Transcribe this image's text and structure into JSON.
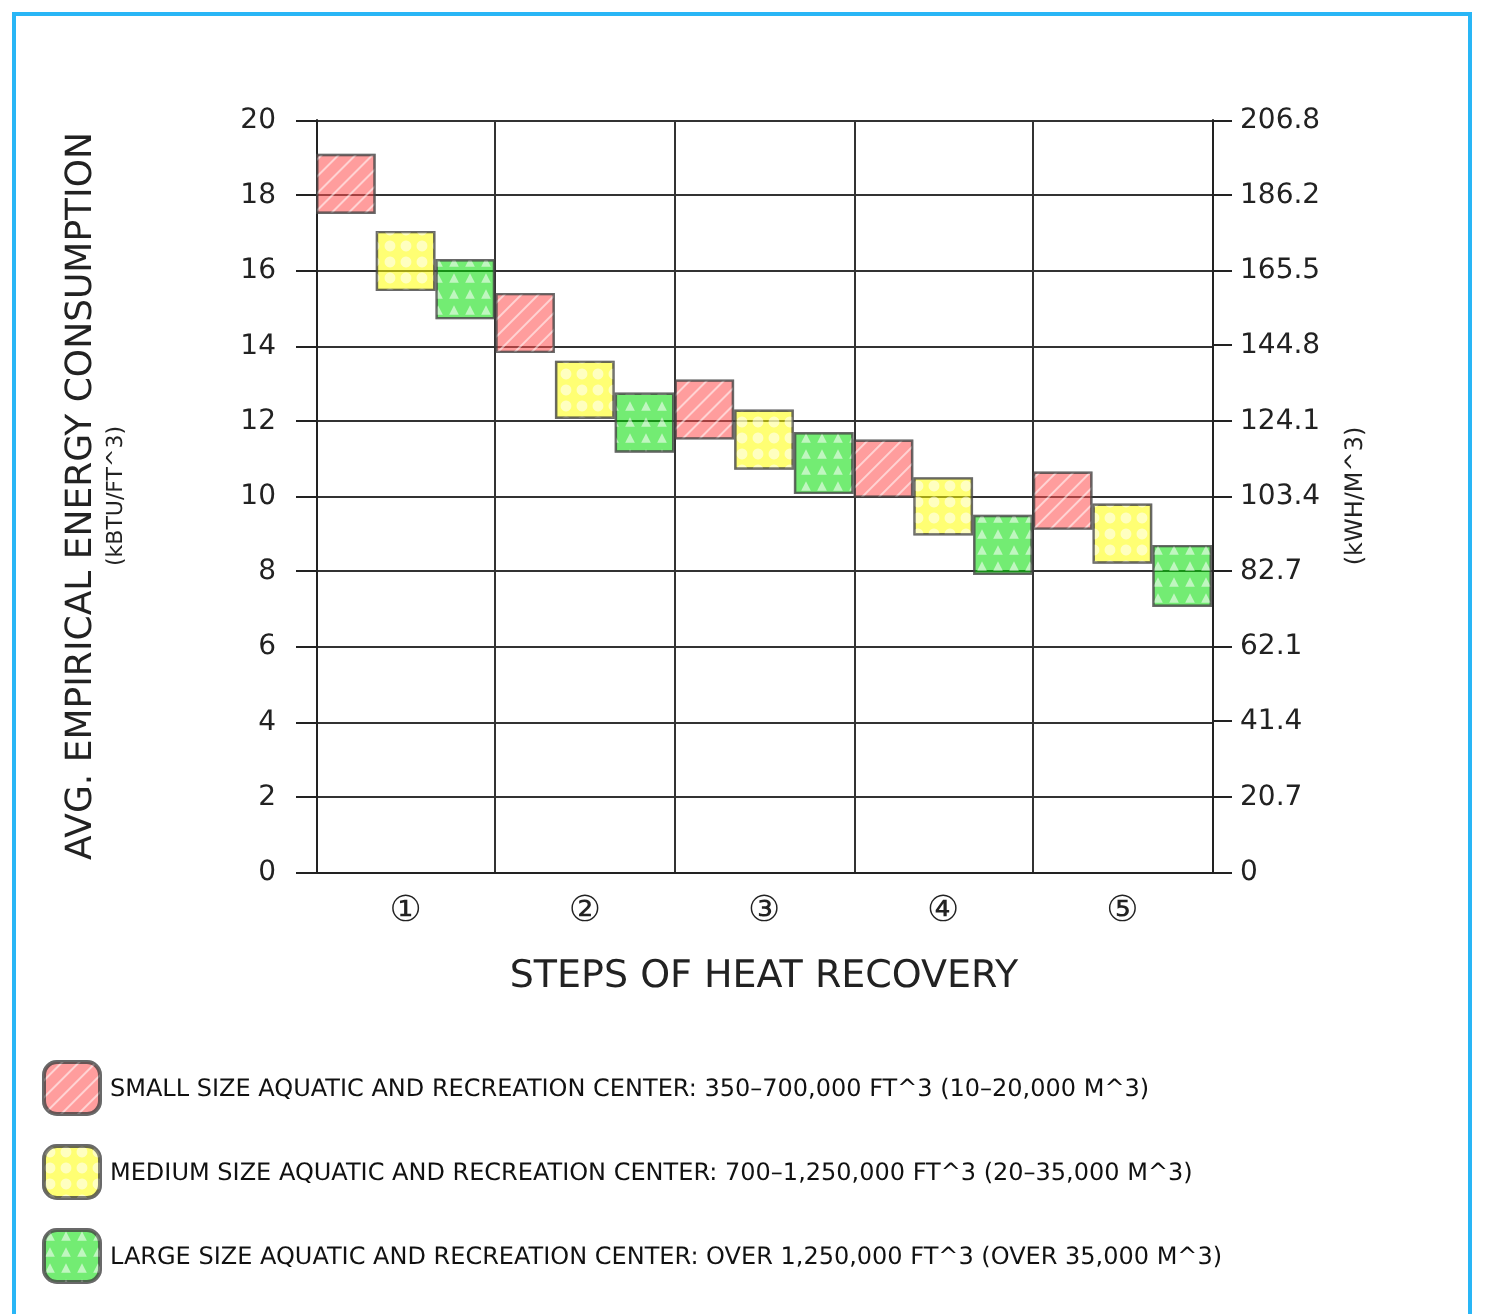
{
  "chart_data": {
    "type": "bar",
    "categories": [
      "①",
      "②",
      "③",
      "④",
      "⑤"
    ],
    "xlabel": "STEPS OF HEAT RECOVERY",
    "ylabel": "AVG. EMPIRICAL ENERGY CONSUMPTION\n(kBTU/FT^3)",
    "y2label": "(kWH/M^3)",
    "series": [
      {
        "name": "SMALL SIZE AQUATIC AND RECREATION CENTER: 350–700,000 FT^3 (10–20,000 M^3)",
        "color": "#ff4d4d",
        "base": [
          17.5,
          13.8,
          11.5,
          9.95,
          9.1
        ],
        "values": [
          1.6,
          1.6,
          1.6,
          1.55,
          1.55
        ]
      },
      {
        "name": "MEDIUM SIZE AQUATIC AND RECREATION CENTER: 700–1,250,000 FT^3 (20–35,000 M^3)",
        "color": "#ffff00",
        "base": [
          15.45,
          12.05,
          10.7,
          8.95,
          8.2
        ],
        "values": [
          1.6,
          1.55,
          1.6,
          1.55,
          1.6
        ]
      },
      {
        "name": "LARGE SIZE AQUATIC AND RECREATION CENTER: OVER 1,250,000 FT^3 (OVER 35,000 M^3)",
        "color": "#00dd00",
        "base": [
          14.7,
          11.15,
          10.05,
          7.9,
          7.05
        ],
        "values": [
          1.6,
          1.6,
          1.65,
          1.6,
          1.65
        ]
      }
    ],
    "ylim": [
      0,
      20
    ],
    "yticks": [
      0,
      2,
      4,
      6,
      8,
      10,
      12,
      14,
      16,
      18,
      20
    ],
    "y2lim": [
      0,
      206.8
    ],
    "y2ticks": [
      0,
      20.7,
      41.4,
      62.1,
      82.7,
      103.4,
      124.1,
      144.8,
      165.5,
      186.2,
      206.8
    ],
    "grid": true,
    "legend": "bottom"
  }
}
